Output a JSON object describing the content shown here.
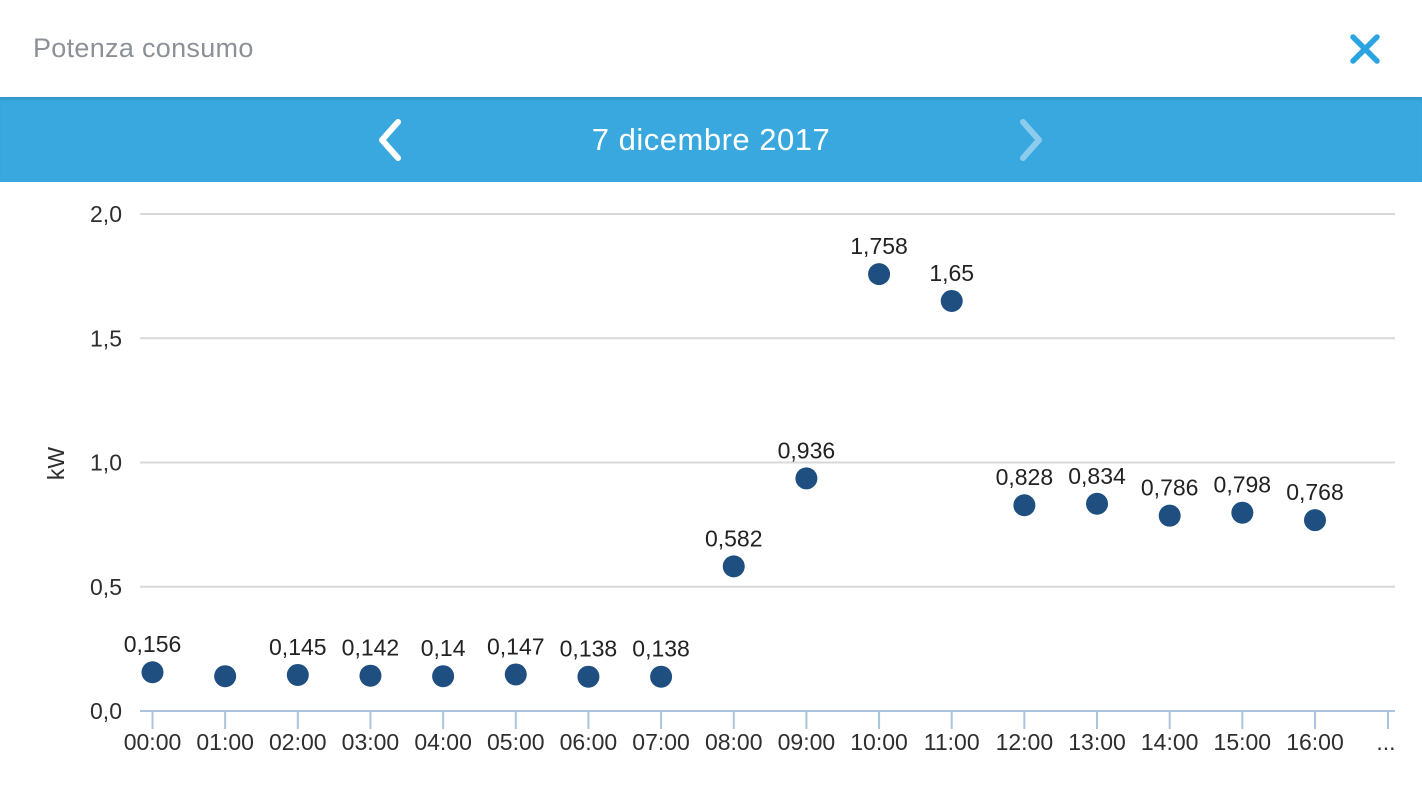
{
  "header": {
    "title": "Potenza consumo",
    "close_icon": "x-close"
  },
  "date_nav": {
    "prev_icon": "chevron-left",
    "date_label": "7 dicembre 2017",
    "next_icon": "chevron-right",
    "bar_color": "#38a8de"
  },
  "chart_data": {
    "type": "scatter",
    "title": "",
    "ylabel": "kW",
    "x_categories": [
      "00:00",
      "01:00",
      "02:00",
      "03:00",
      "04:00",
      "05:00",
      "06:00",
      "07:00",
      "08:00",
      "09:00",
      "10:00",
      "11:00",
      "12:00",
      "13:00",
      "14:00",
      "15:00",
      "16:00"
    ],
    "x_overflow_label": "...",
    "values": [
      0.156,
      0.14,
      0.145,
      0.142,
      0.14,
      0.147,
      0.138,
      0.138,
      0.582,
      0.936,
      1.758,
      1.65,
      0.828,
      0.834,
      0.786,
      0.798,
      0.768
    ],
    "point_labels": [
      "0,156",
      "",
      "0,145",
      "0,142",
      "0,14",
      "0,147",
      "0,138",
      "0,138",
      "0,582",
      "0,936",
      "1,758",
      "1,65",
      "0,828",
      "0,834",
      "0,786",
      "0,798",
      "0,768"
    ],
    "y_ticks": [
      {
        "v": 0.0,
        "label": "0,0"
      },
      {
        "v": 0.5,
        "label": "0,5"
      },
      {
        "v": 1.0,
        "label": "1,0"
      },
      {
        "v": 1.5,
        "label": "1,5"
      },
      {
        "v": 2.0,
        "label": "2,0"
      }
    ],
    "ylim": [
      0,
      2.13
    ],
    "grid": true,
    "legend_position": "none",
    "colors": {
      "point": "#1e4f80",
      "grid_line": "#d8d8d8",
      "axis_line": "#abc4dc",
      "tick_label": "#2e2e2e",
      "point_label": "#222222"
    }
  }
}
